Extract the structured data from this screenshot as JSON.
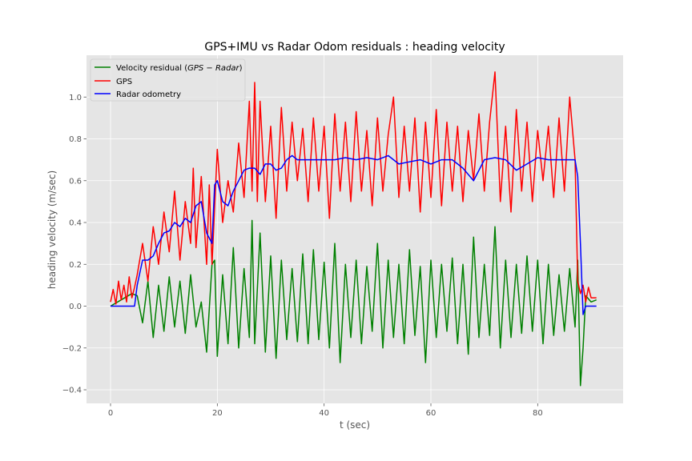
{
  "chart_data": {
    "type": "line",
    "title": "GPS+IMU vs Radar Odom residuals : heading velocity",
    "xlabel": "t (sec)",
    "ylabel": "heading velocity (m/sec)",
    "xlim": [
      -4.5,
      96
    ],
    "ylim": [
      -0.465,
      1.2
    ],
    "xticks": [
      0,
      20,
      40,
      60,
      80
    ],
    "xtick_labels": [
      "0",
      "20",
      "40",
      "60",
      "80"
    ],
    "yticks": [
      -0.4,
      -0.2,
      0.0,
      0.2,
      0.4,
      0.6,
      0.8,
      1.0
    ],
    "ytick_labels": [
      "−0.4",
      "−0.2",
      "0.0",
      "0.2",
      "0.4",
      "0.6",
      "0.8",
      "1.0"
    ],
    "grid": true,
    "legend_position": "top-left",
    "colors": {
      "background": "#e5e5e5",
      "grid": "#ffffff",
      "residual": "#008000",
      "gps": "#ff0000",
      "radar": "#0000ff"
    },
    "series": [
      {
        "name": "Velocity residual (GPS − Radar)",
        "legend_prefix": "Velocity residual (",
        "legend_math": "GPS − Radar",
        "legend_suffix": ")",
        "color": "#008000",
        "x": [
          0,
          2,
          4,
          5,
          6,
          7,
          8,
          9,
          10,
          11,
          12,
          13,
          14,
          15,
          16,
          17,
          18,
          19,
          19.5,
          20,
          21,
          22,
          23,
          24,
          25,
          26,
          26.5,
          27,
          28,
          29,
          30,
          31,
          32,
          33,
          34,
          35,
          36,
          37,
          38,
          39,
          40,
          41,
          42,
          43,
          44,
          45,
          46,
          47,
          48,
          49,
          50,
          51,
          52,
          53,
          54,
          55,
          56,
          57,
          58,
          59,
          60,
          61,
          62,
          63,
          64,
          65,
          66,
          67,
          68,
          69,
          70,
          71,
          72,
          73,
          74,
          75,
          76,
          77,
          78,
          79,
          80,
          81,
          82,
          83,
          84,
          85,
          86,
          87,
          87.5,
          88,
          88.5,
          89,
          90,
          91
        ],
        "y": [
          0.0,
          0.03,
          0.06,
          0.05,
          -0.08,
          0.12,
          -0.15,
          0.1,
          -0.12,
          0.14,
          -0.1,
          0.12,
          -0.13,
          0.15,
          -0.1,
          0.02,
          -0.22,
          0.2,
          0.22,
          -0.24,
          0.15,
          -0.18,
          0.28,
          -0.2,
          0.18,
          -0.15,
          0.41,
          -0.18,
          0.35,
          -0.22,
          0.24,
          -0.25,
          0.22,
          -0.16,
          0.18,
          -0.17,
          0.25,
          -0.18,
          0.27,
          -0.16,
          0.21,
          -0.2,
          0.3,
          -0.27,
          0.2,
          -0.15,
          0.22,
          -0.18,
          0.19,
          -0.12,
          0.3,
          -0.2,
          0.22,
          -0.15,
          0.2,
          -0.18,
          0.27,
          -0.14,
          0.19,
          -0.27,
          0.22,
          -0.15,
          0.2,
          -0.12,
          0.23,
          -0.18,
          0.2,
          -0.23,
          0.33,
          -0.15,
          0.2,
          -0.14,
          0.38,
          -0.2,
          0.22,
          -0.15,
          0.2,
          -0.13,
          0.24,
          -0.12,
          0.22,
          -0.18,
          0.2,
          -0.14,
          0.15,
          -0.12,
          0.18,
          -0.1,
          0.22,
          -0.38,
          -0.2,
          0.05,
          0.02,
          0.03
        ]
      },
      {
        "name": "GPS",
        "color": "#ff0000",
        "x": [
          0,
          0.5,
          1,
          1.5,
          2,
          2.5,
          3,
          3.5,
          4,
          4.5,
          5,
          6,
          7,
          8,
          9,
          10,
          11,
          12,
          13,
          14,
          15,
          15.5,
          16,
          17,
          18,
          18.5,
          19,
          20,
          21,
          22,
          23,
          24,
          25,
          26,
          26.5,
          27,
          27.5,
          28,
          29,
          30,
          31,
          32,
          33,
          34,
          35,
          36,
          37,
          38,
          39,
          40,
          41,
          42,
          43,
          44,
          45,
          46,
          47,
          48,
          49,
          50,
          51,
          52,
          53,
          54,
          55,
          56,
          57,
          58,
          59,
          60,
          61,
          62,
          63,
          64,
          65,
          66,
          67,
          68,
          69,
          70,
          71,
          72,
          73,
          74,
          75,
          76,
          77,
          78,
          79,
          80,
          81,
          82,
          83,
          84,
          85,
          86,
          87,
          87.5,
          88,
          88.5,
          89,
          89.5,
          90,
          91
        ],
        "y": [
          0.02,
          0.08,
          0.01,
          0.12,
          0.03,
          0.1,
          0.02,
          0.14,
          0.04,
          0.09,
          0.15,
          0.3,
          0.12,
          0.38,
          0.2,
          0.45,
          0.26,
          0.55,
          0.22,
          0.5,
          0.3,
          0.66,
          0.28,
          0.62,
          0.2,
          0.58,
          0.2,
          0.75,
          0.4,
          0.6,
          0.45,
          0.78,
          0.52,
          0.98,
          0.55,
          1.07,
          0.5,
          0.98,
          0.5,
          0.86,
          0.42,
          0.95,
          0.55,
          0.88,
          0.6,
          0.85,
          0.5,
          0.9,
          0.55,
          0.86,
          0.42,
          0.92,
          0.55,
          0.88,
          0.5,
          0.93,
          0.55,
          0.84,
          0.48,
          0.9,
          0.55,
          0.82,
          1.0,
          0.52,
          0.86,
          0.55,
          0.9,
          0.45,
          0.88,
          0.52,
          0.94,
          0.48,
          0.88,
          0.55,
          0.86,
          0.5,
          0.84,
          0.6,
          0.92,
          0.55,
          0.88,
          1.12,
          0.5,
          0.86,
          0.45,
          0.94,
          0.55,
          0.88,
          0.5,
          0.84,
          0.6,
          0.86,
          0.52,
          0.9,
          0.55,
          1.0,
          0.7,
          0.12,
          0.06,
          0.1,
          0.02,
          0.09,
          0.04,
          0.04
        ]
      },
      {
        "name": "Radar odometry",
        "color": "#0000ff",
        "x": [
          0,
          4.5,
          5,
          6,
          7,
          8,
          9,
          10,
          11,
          12,
          13,
          14,
          15,
          16,
          17,
          18,
          19,
          19.5,
          20,
          21,
          22,
          23,
          24,
          25,
          26,
          27,
          28,
          29,
          30,
          31,
          32,
          33,
          34,
          35,
          36,
          38,
          40,
          42,
          44,
          46,
          48,
          50,
          52,
          54,
          56,
          58,
          60,
          62,
          64,
          66,
          68,
          70,
          72,
          74,
          76,
          78,
          80,
          82,
          84,
          86,
          87,
          87.5,
          88,
          88.5,
          89,
          91
        ],
        "y": [
          0.0,
          0.0,
          0.1,
          0.22,
          0.22,
          0.24,
          0.3,
          0.35,
          0.36,
          0.4,
          0.38,
          0.42,
          0.4,
          0.48,
          0.5,
          0.35,
          0.3,
          0.58,
          0.6,
          0.5,
          0.48,
          0.55,
          0.6,
          0.65,
          0.66,
          0.66,
          0.63,
          0.68,
          0.68,
          0.65,
          0.66,
          0.7,
          0.72,
          0.7,
          0.7,
          0.7,
          0.7,
          0.7,
          0.71,
          0.7,
          0.71,
          0.7,
          0.72,
          0.68,
          0.69,
          0.7,
          0.68,
          0.7,
          0.7,
          0.66,
          0.6,
          0.7,
          0.71,
          0.7,
          0.65,
          0.68,
          0.71,
          0.7,
          0.7,
          0.7,
          0.7,
          0.62,
          0.3,
          -0.04,
          0.0,
          0.0
        ]
      }
    ]
  }
}
